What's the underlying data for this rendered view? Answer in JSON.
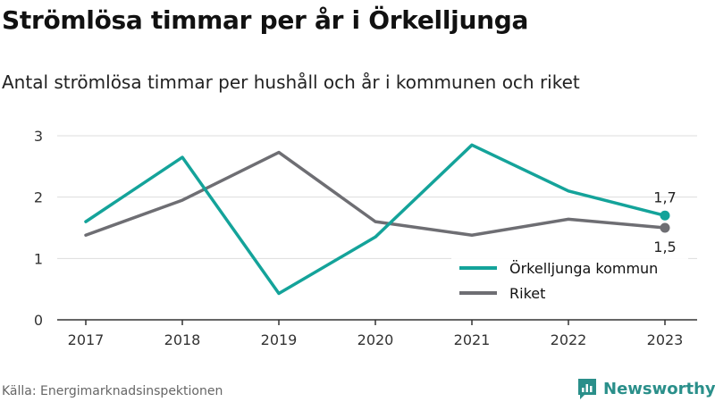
{
  "header": {
    "title": "Strömlösa timmar per år i Örkelljunga",
    "subtitle": "Antal strömlösa timmar per hushåll och år i kommunen och riket"
  },
  "footer": {
    "source": "Källa: Energimarknadsinspektionen",
    "brand": "Newsworthy"
  },
  "colors": {
    "teal": "#14a39a",
    "gray": "#6e6e73",
    "grid": "#dddddd",
    "axis": "#333333"
  },
  "chart_data": {
    "type": "line",
    "x": [
      "2017",
      "2018",
      "2019",
      "2020",
      "2021",
      "2022",
      "2023"
    ],
    "ylim": [
      0,
      3
    ],
    "yticks": [
      "0",
      "1",
      "2",
      "3"
    ],
    "grid": true,
    "legend_position": "bottom-right",
    "series": [
      {
        "name": "Örkelljunga kommun",
        "color": "#14a39a",
        "values": [
          1.6,
          2.65,
          0.43,
          1.35,
          2.85,
          2.1,
          1.7
        ],
        "end_label": "1,7"
      },
      {
        "name": "Riket",
        "color": "#6e6e73",
        "values": [
          1.38,
          1.95,
          2.73,
          1.6,
          1.38,
          1.64,
          1.5
        ],
        "end_label": "1,5"
      }
    ]
  }
}
